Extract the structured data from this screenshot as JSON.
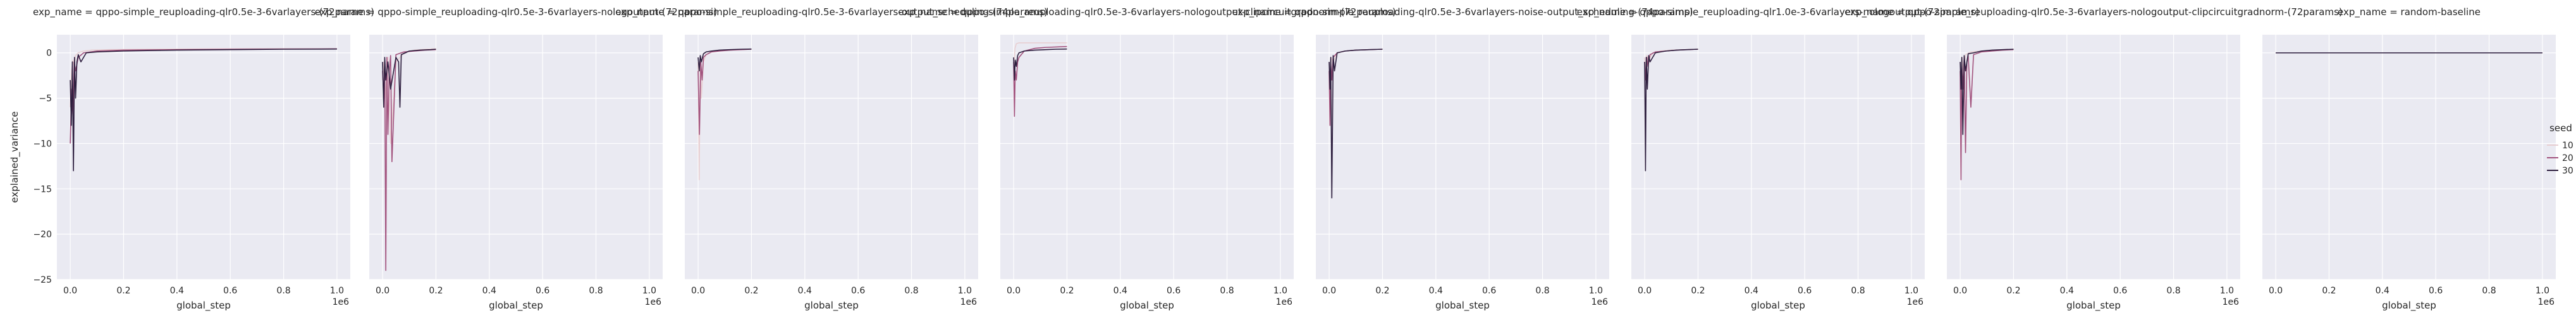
{
  "chart_data": {
    "type": "line",
    "ylabel": "explained_variance",
    "xlabel": "global_step",
    "x_offset_label": "1e6",
    "ylim": [
      -25,
      2
    ],
    "yticks": [
      0,
      -5,
      -10,
      -15,
      -20,
      -25
    ],
    "grid": true,
    "background": "#eaeaf2",
    "legend": {
      "title": "seed",
      "placement": "right",
      "entries": [
        {
          "label": "10",
          "color": "#e8cfd2"
        },
        {
          "label": "20",
          "color": "#a2527d"
        },
        {
          "label": "30",
          "color": "#2d1e3e"
        }
      ]
    },
    "panels": [
      {
        "title": "exp_name = qppo-simple_reuploading-qlr0.5e-3-6varlayers-(72params)",
        "xlim": [
          -0.05,
          1.05
        ],
        "xticks": [
          "0.0",
          "0.2",
          "0.4",
          "0.6",
          "0.8",
          "1.0"
        ],
        "series": [
          {
            "seed": "10",
            "x": [
              0,
              0.005,
              0.01,
              0.015,
              0.02,
              0.03,
              0.05,
              0.08,
              0.15,
              0.3,
              0.5,
              0.7,
              0.9,
              1.0
            ],
            "y": [
              -6,
              -2,
              -0.8,
              -1.5,
              -0.3,
              0,
              0.2,
              0.3,
              0.35,
              0.4,
              0.42,
              0.45,
              0.45,
              0.45
            ]
          },
          {
            "seed": "20",
            "x": [
              0,
              0.005,
              0.01,
              0.015,
              0.02,
              0.03,
              0.05,
              0.1,
              0.2,
              0.4,
              0.6,
              0.8,
              1.0
            ],
            "y": [
              -10,
              -4,
              -7,
              -1,
              -2,
              -0.5,
              0,
              0.2,
              0.3,
              0.35,
              0.4,
              0.42,
              0.44
            ]
          },
          {
            "seed": "30",
            "x": [
              0,
              0.004,
              0.008,
              0.012,
              0.016,
              0.02,
              0.025,
              0.03,
              0.04,
              0.06,
              0.1,
              0.2,
              0.4,
              0.6,
              0.8,
              1.0
            ],
            "y": [
              -3,
              -8,
              -1,
              -13,
              -0.5,
              -5,
              -1,
              -0.2,
              -1,
              0,
              0.1,
              0.2,
              0.3,
              0.35,
              0.4,
              0.42
            ]
          }
        ]
      },
      {
        "title": "exp_name = qppo-simple_reuploading-qlr0.5e-3-6varlayers-nologoutput-(72params)",
        "xlim": [
          -0.05,
          1.05
        ],
        "xticks": [
          "0.0",
          "0.2",
          "0.4",
          "0.6",
          "0.8",
          "1.0"
        ],
        "series": [
          {
            "seed": "10",
            "x": [
              0,
              0.005,
              0.01,
              0.02,
              0.03,
              0.05,
              0.08,
              0.12,
              0.16,
              0.2
            ],
            "y": [
              -3,
              -1,
              -5,
              -0.5,
              -10,
              -1,
              0,
              0.3,
              0.4,
              0.45
            ]
          },
          {
            "seed": "20",
            "x": [
              0,
              0.004,
              0.008,
              0.012,
              0.016,
              0.02,
              0.025,
              0.03,
              0.035,
              0.05,
              0.08,
              0.12,
              0.16,
              0.2
            ],
            "y": [
              -2,
              -5,
              -1,
              -24,
              -0.5,
              -9,
              -2,
              -0.3,
              -12,
              -0.2,
              0.1,
              0.2,
              0.3,
              0.35
            ]
          },
          {
            "seed": "30",
            "x": [
              0,
              0.004,
              0.008,
              0.012,
              0.02,
              0.03,
              0.05,
              0.06,
              0.065,
              0.07,
              0.1,
              0.14,
              0.18,
              0.2
            ],
            "y": [
              -1,
              -6,
              -0.5,
              -3,
              -1,
              -4,
              -0.5,
              -1,
              -6,
              -0.2,
              0.2,
              0.3,
              0.35,
              0.4
            ]
          }
        ]
      },
      {
        "title": "exp_name = qppo-simple_reuploading-qlr0.5e-3-6varlayers-output_scheduling-(74params)",
        "xlim": [
          -0.05,
          1.05
        ],
        "xticks": [
          "0.0",
          "0.2",
          "0.4",
          "0.6",
          "0.8",
          "1.0"
        ],
        "series": [
          {
            "seed": "10",
            "x": [
              0,
              0.004,
              0.008,
              0.012,
              0.02,
              0.03,
              0.05,
              0.08,
              0.12,
              0.16,
              0.2
            ],
            "y": [
              -1,
              -14,
              -0.5,
              -5,
              -1,
              -0.2,
              0.1,
              0.2,
              0.3,
              0.35,
              0.4
            ]
          },
          {
            "seed": "20",
            "x": [
              0,
              0.005,
              0.01,
              0.015,
              0.02,
              0.03,
              0.05,
              0.08,
              0.12,
              0.16,
              0.2
            ],
            "y": [
              -2,
              -9,
              -1,
              -3,
              -0.5,
              -0.2,
              0.1,
              0.2,
              0.3,
              0.35,
              0.4
            ]
          },
          {
            "seed": "30",
            "x": [
              0,
              0.004,
              0.008,
              0.012,
              0.02,
              0.03,
              0.05,
              0.08,
              0.12,
              0.16,
              0.2
            ],
            "y": [
              -0.5,
              -2,
              -0.3,
              -1,
              -0.1,
              0.1,
              0.2,
              0.3,
              0.35,
              0.4,
              0.42
            ]
          }
        ]
      },
      {
        "title": "exp_name = qppo-simple_reuploading-qlr0.5e-3-6varlayers-nologoutput-clipcircuitgradnorm-(72params)",
        "xlim": [
          -0.05,
          1.05
        ],
        "xticks": [
          "0.0",
          "0.2",
          "0.4",
          "0.6",
          "0.8",
          "1.0"
        ],
        "series": [
          {
            "seed": "10",
            "x": [
              0,
              0.005,
              0.01,
              0.02,
              0.05,
              0.1,
              0.15,
              0.2
            ],
            "y": [
              -2,
              0.5,
              1.0,
              1.1,
              1.1,
              1.1,
              1.1,
              1.1
            ]
          },
          {
            "seed": "20",
            "x": [
              0,
              0.003,
              0.006,
              0.01,
              0.015,
              0.02,
              0.04,
              0.08,
              0.12,
              0.16,
              0.2
            ],
            "y": [
              -1,
              -7,
              -2,
              -3,
              -1,
              -0.5,
              0.2,
              0.5,
              0.6,
              0.65,
              0.7
            ]
          },
          {
            "seed": "30",
            "x": [
              0,
              0.003,
              0.006,
              0.01,
              0.015,
              0.02,
              0.04,
              0.08,
              0.12,
              0.16,
              0.2
            ],
            "y": [
              -0.5,
              -3,
              -0.8,
              -1.5,
              -0.3,
              0,
              0.2,
              0.3,
              0.35,
              0.4,
              0.42
            ]
          }
        ]
      },
      {
        "title": "exp_name = qppo-simple_reuploading-qlr0.5e-3-6varlayers-noise-output_scheduling-(74params)",
        "xlim": [
          -0.05,
          1.05
        ],
        "xticks": [
          "0.0",
          "0.2",
          "0.4",
          "0.6",
          "0.8",
          "1.0"
        ],
        "series": [
          {
            "seed": "10",
            "x": [
              0,
              0.004,
              0.008,
              0.015,
              0.03,
              0.06,
              0.1,
              0.15,
              0.2
            ],
            "y": [
              -1,
              -5,
              -0.5,
              -1,
              0,
              0.2,
              0.3,
              0.35,
              0.4
            ]
          },
          {
            "seed": "20",
            "x": [
              0,
              0.003,
              0.006,
              0.01,
              0.015,
              0.03,
              0.06,
              0.1,
              0.15,
              0.2
            ],
            "y": [
              -2,
              -8,
              -1,
              -3,
              -0.5,
              0,
              0.2,
              0.3,
              0.35,
              0.4
            ]
          },
          {
            "seed": "30",
            "x": [
              0,
              0.003,
              0.006,
              0.01,
              0.015,
              0.02,
              0.03,
              0.06,
              0.1,
              0.15,
              0.2
            ],
            "y": [
              -1,
              -4,
              -0.5,
              -16,
              -0.3,
              -2,
              0,
              0.2,
              0.3,
              0.35,
              0.4
            ]
          }
        ]
      },
      {
        "title": "exp_name = qppo-simple_reuploading-qlr1.0e-3-6varlayers-nologoutput-(72params)",
        "xlim": [
          -0.05,
          1.05
        ],
        "xticks": [
          "0.0",
          "0.2",
          "0.4",
          "0.6",
          "0.8",
          "1.0"
        ],
        "series": [
          {
            "seed": "10",
            "x": [
              0,
              0.004,
              0.008,
              0.015,
              0.03,
              0.06,
              0.1,
              0.15,
              0.2
            ],
            "y": [
              -0.5,
              -2,
              -0.3,
              -0.8,
              0,
              0.2,
              0.3,
              0.35,
              0.4
            ]
          },
          {
            "seed": "20",
            "x": [
              0,
              0.004,
              0.008,
              0.012,
              0.02,
              0.04,
              0.08,
              0.12,
              0.16,
              0.2
            ],
            "y": [
              -1,
              -3,
              -0.5,
              -1.5,
              -0.2,
              0.1,
              0.2,
              0.3,
              0.35,
              0.4
            ]
          },
          {
            "seed": "30",
            "x": [
              0,
              0.003,
              0.006,
              0.01,
              0.015,
              0.02,
              0.04,
              0.08,
              0.12,
              0.16,
              0.2
            ],
            "y": [
              -1,
              -13,
              -0.5,
              -4,
              -0.3,
              -1,
              0,
              0.2,
              0.3,
              0.35,
              0.4
            ]
          }
        ]
      },
      {
        "title": "exp_name = qppo-simple_reuploading-qlr0.5e-3-6varlayers-nologoutput-clipcircuitgradnorm-(72params)",
        "xlim": [
          -0.05,
          1.05
        ],
        "xticks": [
          "0.0",
          "0.2",
          "0.4",
          "0.6",
          "0.8",
          "1.0"
        ],
        "series": [
          {
            "seed": "10",
            "x": [
              0,
              0.004,
              0.008,
              0.012,
              0.02,
              0.04,
              0.08,
              0.12,
              0.16,
              0.2
            ],
            "y": [
              -1,
              -5,
              -0.5,
              -2,
              -0.2,
              0.1,
              0.2,
              0.3,
              0.35,
              0.4
            ]
          },
          {
            "seed": "20",
            "x": [
              0,
              0.003,
              0.006,
              0.01,
              0.015,
              0.02,
              0.025,
              0.03,
              0.04,
              0.05,
              0.08,
              0.12,
              0.16,
              0.2
            ],
            "y": [
              -2,
              -14,
              -1,
              -4,
              -0.5,
              -11,
              -1,
              -0.3,
              -6,
              -0.2,
              0.1,
              0.2,
              0.3,
              0.35
            ]
          },
          {
            "seed": "30",
            "x": [
              0,
              0.003,
              0.006,
              0.01,
              0.015,
              0.02,
              0.03,
              0.05,
              0.08,
              0.12,
              0.16,
              0.2
            ],
            "y": [
              -1,
              -4,
              -0.5,
              -9,
              -0.3,
              -2,
              -0.1,
              0,
              0.2,
              0.3,
              0.35,
              0.4
            ]
          }
        ]
      },
      {
        "title": "exp_name = random-baseline",
        "xlim": [
          -0.05,
          1.05
        ],
        "xticks": [
          "0.0",
          "0.2",
          "0.4",
          "0.6",
          "0.8",
          "1.0"
        ],
        "series": [
          {
            "seed": "10",
            "x": [
              0,
              0.2,
              0.4,
              0.6,
              0.8,
              1.0
            ],
            "y": [
              0,
              0,
              0,
              0,
              0,
              0
            ]
          },
          {
            "seed": "20",
            "x": [
              0,
              0.2,
              0.4,
              0.6,
              0.8,
              1.0
            ],
            "y": [
              0,
              0,
              0,
              0,
              0,
              0
            ]
          },
          {
            "seed": "30",
            "x": [
              0,
              0.2,
              0.4,
              0.6,
              0.8,
              1.0
            ],
            "y": [
              0,
              0,
              0,
              0,
              0,
              0
            ]
          }
        ]
      }
    ]
  }
}
